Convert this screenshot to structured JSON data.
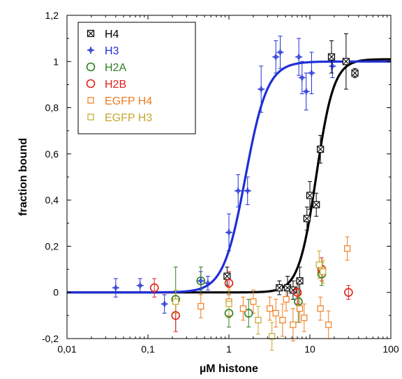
{
  "chart_data": {
    "type": "scatter",
    "title": "",
    "xlabel": "µM histone",
    "ylabel": "fraction bound",
    "x_scale": "log",
    "xlim": [
      0.01,
      100
    ],
    "ylim": [
      -0.2,
      1.2
    ],
    "x_ticks": [
      0.01,
      0.1,
      1,
      10,
      100
    ],
    "x_tick_labels": [
      "0,01",
      "0,1",
      "1",
      "10",
      "100"
    ],
    "y_ticks": [
      -0.2,
      0,
      0.2,
      0.4,
      0.6,
      0.8,
      1.0,
      1.2
    ],
    "y_tick_labels": [
      "-0,2",
      "0",
      "0,2",
      "0,4",
      "0,6",
      "0,8",
      "1",
      "1,2"
    ],
    "grid": false,
    "legend_position": "top-left",
    "series": [
      {
        "name": "H4",
        "marker": "boxed-x",
        "color": "#000000",
        "points": [
          {
            "x": 0.95,
            "y": 0.07,
            "err": 0.04
          },
          {
            "x": 4.2,
            "y": 0.02,
            "err": 0.03
          },
          {
            "x": 5.3,
            "y": 0.02,
            "err": 0.05
          },
          {
            "x": 6.2,
            "y": 0.01,
            "err": 0.04
          },
          {
            "x": 7.5,
            "y": 0.05,
            "err": 0.06
          },
          {
            "x": 9.2,
            "y": 0.32,
            "err": 0.05
          },
          {
            "x": 10.0,
            "y": 0.42,
            "err": 0.06
          },
          {
            "x": 12.0,
            "y": 0.38,
            "err": 0.05
          },
          {
            "x": 13.5,
            "y": 0.62,
            "err": 0.06
          },
          {
            "x": 18.5,
            "y": 1.02,
            "err": 0.07
          },
          {
            "x": 28.0,
            "y": 1.0,
            "err": 0.12
          },
          {
            "x": 36.0,
            "y": 0.95,
            "err": 0.02
          }
        ],
        "fit": {
          "bottom": 0.0,
          "top": 1.01,
          "ec50": 12.0,
          "hill": 4.0
        }
      },
      {
        "name": "H3",
        "marker": "plus",
        "color": "#1f2fd6",
        "points": [
          {
            "x": 0.04,
            "y": 0.02,
            "err": 0.04
          },
          {
            "x": 0.08,
            "y": 0.03,
            "err": 0.03
          },
          {
            "x": 0.16,
            "y": -0.05,
            "err": 0.04
          },
          {
            "x": 0.45,
            "y": 0.05,
            "err": 0.04
          },
          {
            "x": 0.55,
            "y": 0.04,
            "err": 0.03
          },
          {
            "x": 1.0,
            "y": 0.26,
            "err": 0.08
          },
          {
            "x": 1.3,
            "y": 0.44,
            "err": 0.07
          },
          {
            "x": 1.7,
            "y": 0.44,
            "err": 0.06
          },
          {
            "x": 2.5,
            "y": 0.88,
            "err": 0.1
          },
          {
            "x": 3.8,
            "y": 1.02,
            "err": 0.07
          },
          {
            "x": 4.3,
            "y": 1.04,
            "err": 0.07
          },
          {
            "x": 7.3,
            "y": 1.02,
            "err": 0.08
          },
          {
            "x": 8.0,
            "y": 0.93,
            "err": 0.07
          },
          {
            "x": 9.0,
            "y": 0.87,
            "err": 0.08
          },
          {
            "x": 10.5,
            "y": 0.95,
            "err": 0.09
          },
          {
            "x": 19.0,
            "y": 0.98,
            "err": 0.05
          }
        ],
        "fit": {
          "bottom": 0.0,
          "top": 1.0,
          "ec50": 1.6,
          "hill": 3.2
        }
      },
      {
        "name": "H2A",
        "marker": "circle",
        "color": "#2e7d1f",
        "points": [
          {
            "x": 0.22,
            "y": -0.03,
            "err": 0.14
          },
          {
            "x": 0.45,
            "y": 0.05,
            "err": 0.06
          },
          {
            "x": 1.0,
            "y": -0.09,
            "err": 0.06
          },
          {
            "x": 1.75,
            "y": -0.09,
            "err": 0.06
          },
          {
            "x": 7.2,
            "y": -0.04,
            "err": 0.09
          },
          {
            "x": 14.0,
            "y": 0.08,
            "err": 0.05
          }
        ]
      },
      {
        "name": "H2B",
        "marker": "circle",
        "color": "#e0201b",
        "points": [
          {
            "x": 0.12,
            "y": 0.02,
            "err": 0.04
          },
          {
            "x": 0.22,
            "y": -0.1,
            "err": 0.07
          },
          {
            "x": 1.0,
            "y": 0.04,
            "err": 0.05
          },
          {
            "x": 7.0,
            "y": 0.0,
            "err": 0.05
          },
          {
            "x": 14.0,
            "y": 0.1,
            "err": 0.05
          },
          {
            "x": 30.0,
            "y": 0.0,
            "err": 0.03
          }
        ]
      },
      {
        "name": "EGFP H4",
        "marker": "square",
        "color": "#f07c1e",
        "points": [
          {
            "x": 0.45,
            "y": -0.06,
            "err": 0.05
          },
          {
            "x": 1.0,
            "y": -0.04,
            "err": 0.06
          },
          {
            "x": 1.5,
            "y": -0.07,
            "err": 0.05
          },
          {
            "x": 2.0,
            "y": -0.04,
            "err": 0.05
          },
          {
            "x": 3.2,
            "y": -0.07,
            "err": 0.05
          },
          {
            "x": 3.8,
            "y": -0.09,
            "err": 0.06
          },
          {
            "x": 4.6,
            "y": -0.12,
            "err": 0.07
          },
          {
            "x": 5.1,
            "y": -0.03,
            "err": 0.05
          },
          {
            "x": 6.2,
            "y": -0.14,
            "err": 0.07
          },
          {
            "x": 7.5,
            "y": -0.07,
            "err": 0.06
          },
          {
            "x": 8.5,
            "y": -0.11,
            "err": 0.06
          },
          {
            "x": 13.5,
            "y": -0.07,
            "err": 0.05
          },
          {
            "x": 17.0,
            "y": -0.14,
            "err": 0.06
          },
          {
            "x": 29.0,
            "y": 0.19,
            "err": 0.05
          }
        ]
      },
      {
        "name": "EGFP H3",
        "marker": "square",
        "color": "#c4a82a",
        "points": [
          {
            "x": 0.22,
            "y": -0.04,
            "err": 0.05
          },
          {
            "x": 1.0,
            "y": -0.05,
            "err": 0.06
          },
          {
            "x": 2.3,
            "y": -0.12,
            "err": 0.06
          },
          {
            "x": 3.4,
            "y": -0.19,
            "err": 0.06
          },
          {
            "x": 13.0,
            "y": 0.12,
            "err": 0.06
          },
          {
            "x": 14.5,
            "y": 0.09,
            "err": 0.05
          }
        ]
      }
    ]
  }
}
